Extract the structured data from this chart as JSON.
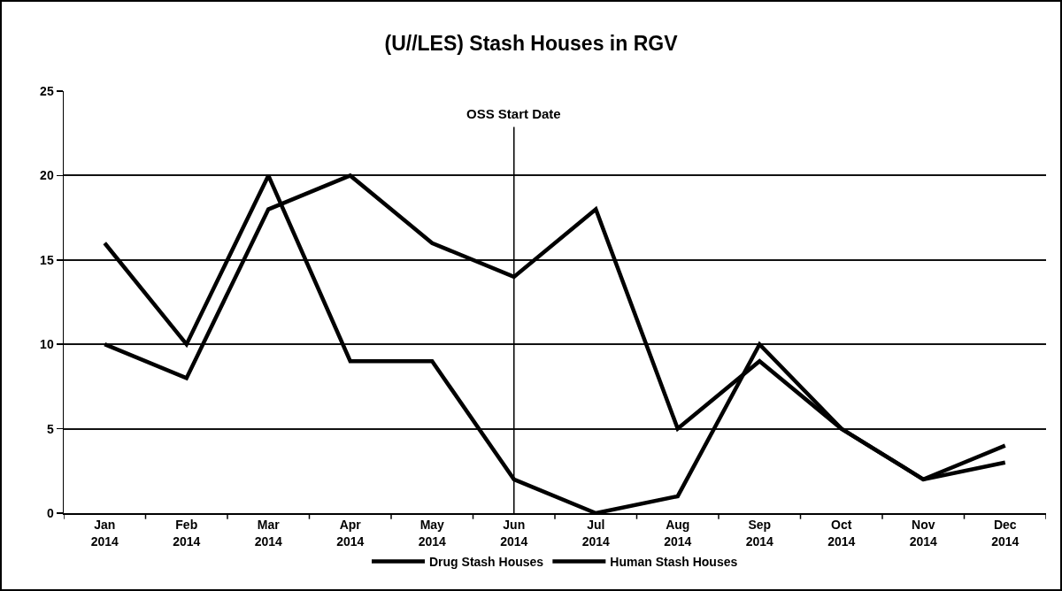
{
  "chart_data": {
    "type": "line",
    "title": "(U//LES) Stash Houses in RGV",
    "categories": [
      "Jan 2014",
      "Feb 2014",
      "Mar 2014",
      "Apr 2014",
      "May 2014",
      "Jun 2014",
      "Jul 2014",
      "Aug 2014",
      "Sep 2014",
      "Oct 2014",
      "Nov 2014",
      "Dec 2014"
    ],
    "series": [
      {
        "name": "Drug Stash Houses",
        "color": "#000000",
        "values": [
          16,
          10,
          20,
          9,
          9,
          2,
          0,
          1,
          10,
          5,
          2,
          4
        ]
      },
      {
        "name": "Human Stash Houses",
        "color": "#000000",
        "values": [
          10,
          8,
          18,
          20,
          16,
          14,
          18,
          5,
          9,
          5,
          2,
          3
        ]
      }
    ],
    "ylim": [
      0,
      25
    ],
    "yticks": [
      0,
      5,
      10,
      15,
      20,
      25
    ],
    "grid": "y",
    "legend": "bottom",
    "marker": "none",
    "line_style": "solid",
    "ref_lines": [
      {
        "axis": "x",
        "value": "Jun 2014",
        "label": "OSS Start Date",
        "color": "#000000"
      }
    ]
  }
}
